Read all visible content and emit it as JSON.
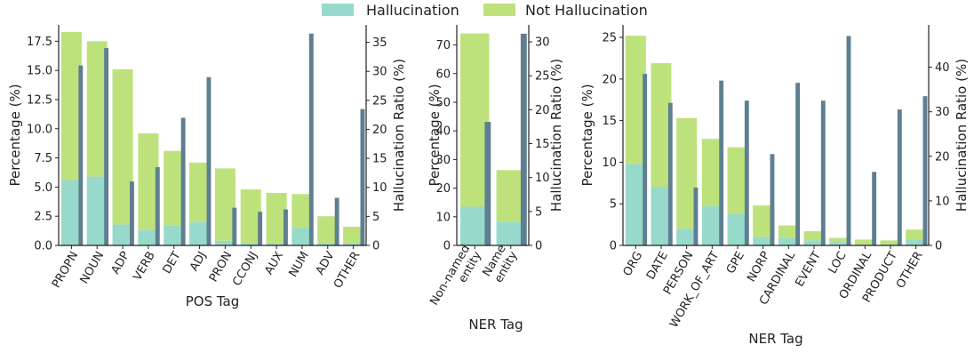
{
  "legend": [
    {
      "label": "Hallucination",
      "color": "#97d9cb"
    },
    {
      "label": "Not Hallucination",
      "color": "#bde27c"
    }
  ],
  "colors": {
    "hallucination": "#97d9cb",
    "not_hallucination": "#bde27c",
    "ratio": "#5e7f91"
  },
  "chart_data": [
    {
      "type": "bar",
      "xlabel": "POS Tag",
      "ylabel": "Percentage (%)",
      "y2label": "Hallucination Ratio (%)",
      "categories": [
        "PROPN",
        "NOUN",
        "ADP",
        "VERB",
        "DET",
        "ADJ",
        "PRON",
        "CCONJ",
        "AUX",
        "NUM",
        "ADV",
        "OTHER"
      ],
      "series": [
        {
          "name": "Hallucination",
          "axis": "left",
          "values": [
            5.6,
            5.9,
            1.8,
            1.3,
            1.7,
            2.0,
            0.4,
            0.2,
            0.2,
            1.5,
            0.2,
            0.2
          ]
        },
        {
          "name": "Not Hallucination",
          "axis": "left",
          "values": [
            12.7,
            11.6,
            13.3,
            8.3,
            6.4,
            5.1,
            6.2,
            4.6,
            4.3,
            2.9,
            2.3,
            1.4
          ]
        },
        {
          "axis": "right",
          "values": [
            31,
            34,
            11,
            13.5,
            22,
            29,
            6.5,
            5.8,
            6.2,
            36.5,
            8.2,
            23.5
          ]
        }
      ],
      "ylim": [
        0,
        18.9
      ],
      "yticks": [
        0.0,
        2.5,
        5.0,
        7.5,
        10.0,
        12.5,
        15.0,
        17.5
      ],
      "ytick_labels": [
        "0.0",
        "2.5",
        "5.0",
        "7.5",
        "10.0",
        "12.5",
        "15.0",
        "17.5"
      ],
      "y2lim": [
        0,
        38
      ],
      "y2ticks": [
        0,
        5,
        10,
        15,
        20,
        25,
        30,
        35
      ]
    },
    {
      "type": "bar",
      "xlabel": "NER Tag",
      "ylabel": "Percentage (%)",
      "y2label": "Hallucination Ratio (%)",
      "categories": [
        "Non-named entity",
        "Name entity"
      ],
      "category_lines": [
        [
          "Non-named",
          "entity"
        ],
        [
          "Name",
          "entity"
        ]
      ],
      "series": [
        {
          "name": "Hallucination",
          "axis": "left",
          "values": [
            13.5,
            8.3
          ]
        },
        {
          "name": "Not Hallucination",
          "axis": "left",
          "values": [
            60.5,
            18.0
          ]
        },
        {
          "axis": "right",
          "values": [
            18.2,
            31.2
          ]
        }
      ],
      "ylim": [
        0,
        77
      ],
      "yticks": [
        0,
        10,
        20,
        30,
        40,
        50,
        60,
        70
      ],
      "y2lim": [
        0,
        32.5
      ],
      "y2ticks": [
        0,
        5,
        10,
        15,
        20,
        25,
        30
      ]
    },
    {
      "type": "bar",
      "xlabel": "NER Tag",
      "ylabel": "Percentage (%)",
      "y2label": "Hallucination Ratio (%)",
      "categories": [
        "ORG",
        "DATE",
        "PERSON",
        "WORK_OF_ART",
        "GPE",
        "NORP",
        "CARDINAL",
        "EVENT",
        "LOC",
        "ORDINAL",
        "PRODUCT",
        "OTHER"
      ],
      "series": [
        {
          "name": "Hallucination",
          "axis": "left",
          "values": [
            9.8,
            7.0,
            2.0,
            4.7,
            3.8,
            1.0,
            0.9,
            0.6,
            0.4,
            0.1,
            0.1,
            0.7
          ]
        },
        {
          "name": "Not Hallucination",
          "axis": "left",
          "values": [
            15.4,
            14.9,
            13.3,
            8.1,
            8.0,
            3.8,
            1.5,
            1.1,
            0.5,
            0.6,
            0.5,
            1.2
          ]
        },
        {
          "axis": "right",
          "values": [
            38.5,
            32,
            13,
            37,
            32.5,
            20.5,
            36.5,
            32.5,
            47,
            16.5,
            30.5,
            33.5
          ]
        }
      ],
      "ylim": [
        0,
        26.5
      ],
      "yticks": [
        0,
        5,
        10,
        15,
        20,
        25
      ],
      "y2lim": [
        0,
        49.5
      ],
      "y2ticks": [
        0,
        10,
        20,
        30,
        40
      ]
    }
  ]
}
